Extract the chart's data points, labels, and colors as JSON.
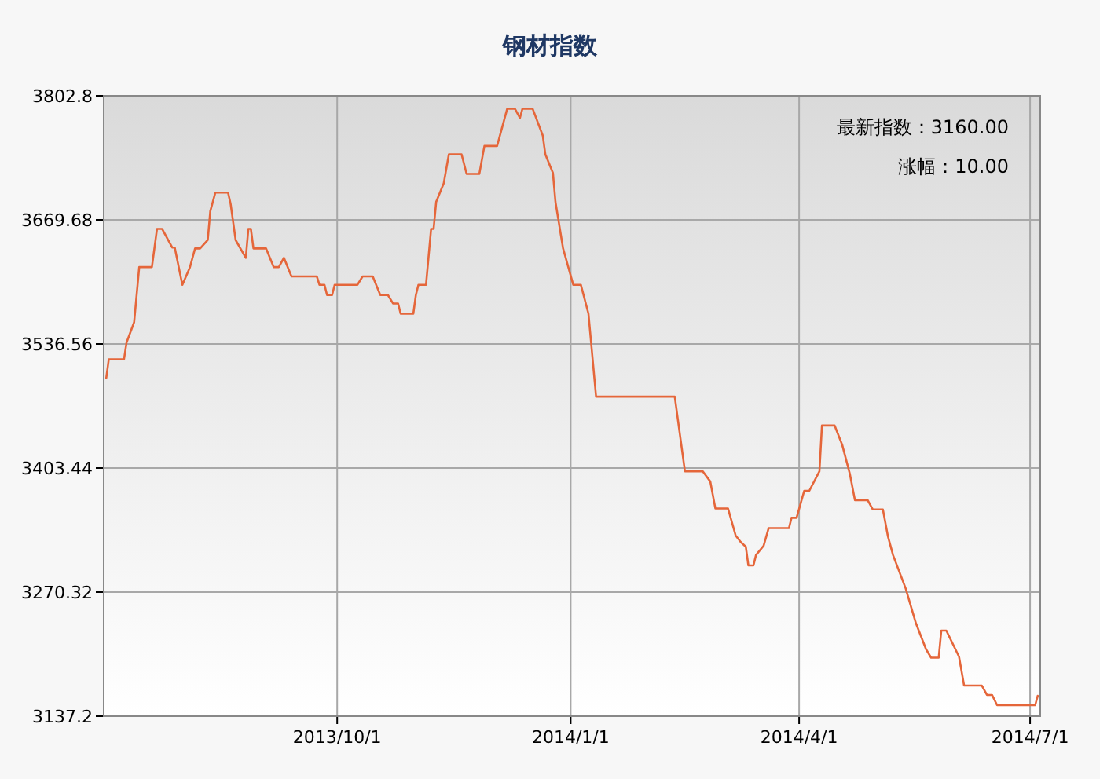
{
  "chart_data": {
    "type": "line",
    "title": "钢材指数",
    "annotations": [
      "最新指数：3160.00",
      "涨幅：10.00"
    ],
    "xlim": [
      "2013-07-01",
      "2014-07-05"
    ],
    "xticks": [
      {
        "value": "2013-10-01",
        "label": "2013/10/1"
      },
      {
        "value": "2014-01-01",
        "label": "2014/1/1"
      },
      {
        "value": "2014-04-01",
        "label": "2014/4/1"
      },
      {
        "value": "2014-07-01",
        "label": "2014/7/1"
      }
    ],
    "ylim": [
      3137.2,
      3802.8
    ],
    "yticks": [
      {
        "value": 3137.2,
        "label": "3137.2"
      },
      {
        "value": 3270.32,
        "label": "3270.32"
      },
      {
        "value": 3403.44,
        "label": "3403.44"
      },
      {
        "value": 3536.56,
        "label": "3536.56"
      },
      {
        "value": 3669.68,
        "label": "3669.68"
      },
      {
        "value": 3802.8,
        "label": "3802.8"
      }
    ],
    "grid": true,
    "marker": "none",
    "line_style": "solid",
    "x": [
      "2013-07-02",
      "2013-07-03",
      "2013-07-09",
      "2013-07-10",
      "2013-07-13",
      "2013-07-15",
      "2013-07-20",
      "2013-07-22",
      "2013-07-24",
      "2013-07-28",
      "2013-07-29",
      "2013-08-01",
      "2013-08-04",
      "2013-08-06",
      "2013-08-08",
      "2013-08-11",
      "2013-08-12",
      "2013-08-14",
      "2013-08-19",
      "2013-08-20",
      "2013-08-22",
      "2013-08-26",
      "2013-08-27",
      "2013-08-28",
      "2013-08-29",
      "2013-09-03",
      "2013-09-06",
      "2013-09-08",
      "2013-09-10",
      "2013-09-13",
      "2013-09-23",
      "2013-09-24",
      "2013-09-26",
      "2013-09-27",
      "2013-09-29",
      "2013-09-30",
      "2013-10-09",
      "2013-10-11",
      "2013-10-15",
      "2013-10-18",
      "2013-10-21",
      "2013-10-23",
      "2013-10-25",
      "2013-10-26",
      "2013-10-31",
      "2013-11-01",
      "2013-11-02",
      "2013-11-05",
      "2013-11-07",
      "2013-11-08",
      "2013-11-09",
      "2013-11-12",
      "2013-11-14",
      "2013-11-19",
      "2013-11-21",
      "2013-11-26",
      "2013-11-28",
      "2013-12-03",
      "2013-12-07",
      "2013-12-10",
      "2013-12-12",
      "2013-12-13",
      "2013-12-17",
      "2013-12-21",
      "2013-12-22",
      "2013-12-25",
      "2013-12-26",
      "2013-12-29",
      "2014-01-02",
      "2014-01-05",
      "2014-01-08",
      "2014-01-11",
      "2014-02-11",
      "2014-02-15",
      "2014-02-22",
      "2014-02-25",
      "2014-02-27",
      "2014-03-04",
      "2014-03-07",
      "2014-03-09",
      "2014-03-11",
      "2014-03-12",
      "2014-03-14",
      "2014-03-15",
      "2014-03-18",
      "2014-03-20",
      "2014-03-28",
      "2014-03-29",
      "2014-03-31",
      "2014-04-03",
      "2014-04-05",
      "2014-04-09",
      "2014-04-10",
      "2014-04-15",
      "2014-04-18",
      "2014-04-21",
      "2014-04-23",
      "2014-04-28",
      "2014-04-30",
      "2014-05-04",
      "2014-05-06",
      "2014-05-08",
      "2014-05-13",
      "2014-05-17",
      "2014-05-21",
      "2014-05-23",
      "2014-05-26",
      "2014-05-27",
      "2014-05-29",
      "2014-06-03",
      "2014-06-05",
      "2014-06-12",
      "2014-06-14",
      "2014-06-16",
      "2014-06-18",
      "2014-07-03",
      "2014-07-04"
    ],
    "series": [
      {
        "color": "#e5663a",
        "values": [
          3500,
          3520,
          3520,
          3538,
          3560,
          3619,
          3619,
          3660,
          3660,
          3640,
          3640,
          3600,
          3619,
          3639,
          3639,
          3648,
          3679,
          3699,
          3699,
          3687,
          3648,
          3629,
          3660,
          3660,
          3639,
          3639,
          3619,
          3619,
          3629,
          3609,
          3609,
          3600,
          3600,
          3589,
          3589,
          3600,
          3600,
          3609,
          3609,
          3589,
          3589,
          3580,
          3580,
          3569,
          3569,
          3589,
          3600,
          3600,
          3660,
          3660,
          3689,
          3709,
          3740,
          3740,
          3719,
          3719,
          3749,
          3749,
          3789,
          3789,
          3779,
          3789,
          3789,
          3760,
          3740,
          3720,
          3689,
          3639,
          3600,
          3600,
          3569,
          3480,
          3480,
          3400,
          3400,
          3389,
          3360,
          3360,
          3331,
          3324,
          3319,
          3299,
          3299,
          3310,
          3320,
          3339,
          3339,
          3350,
          3350,
          3379,
          3379,
          3400,
          3449,
          3449,
          3428,
          3397,
          3369,
          3369,
          3359,
          3359,
          3330,
          3310,
          3274,
          3237,
          3209,
          3200,
          3200,
          3229,
          3229,
          3201,
          3170,
          3170,
          3160,
          3160,
          3149,
          3149,
          3159
        ]
      }
    ]
  }
}
